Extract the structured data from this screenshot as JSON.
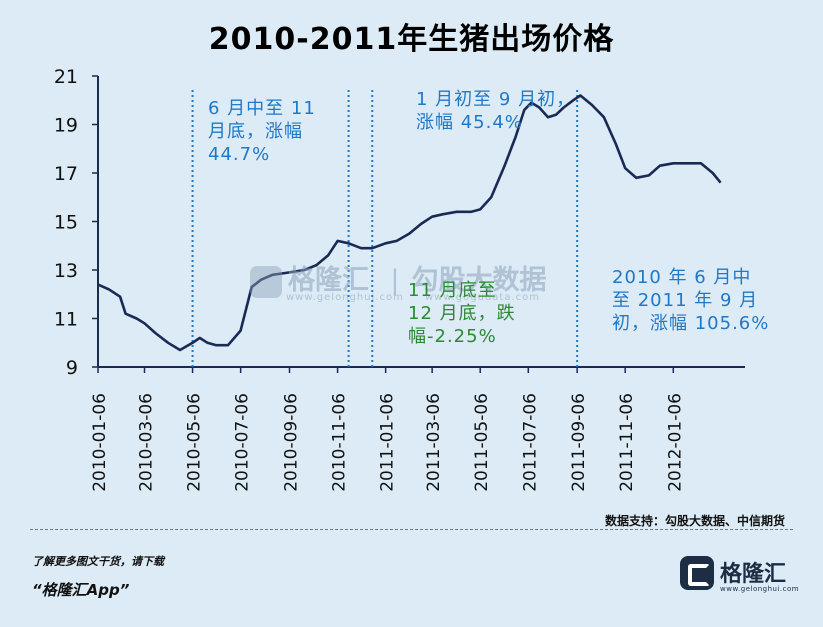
{
  "chart_data": {
    "type": "line",
    "title": "2010-2011年生猪出场价格",
    "xlabel": "",
    "ylabel": "",
    "ylim": [
      9,
      21
    ],
    "yticks": [
      9,
      11,
      13,
      15,
      17,
      19,
      21
    ],
    "xlim": [
      "2010-01-06",
      "2012-04-06"
    ],
    "xticks": [
      "2010-01-06",
      "2010-03-06",
      "2010-05-06",
      "2010-07-06",
      "2010-09-06",
      "2010-11-06",
      "2011-01-06",
      "2011-03-06",
      "2011-05-06",
      "2011-07-06",
      "2011-09-06",
      "2011-11-06",
      "2012-01-06"
    ],
    "grid": false,
    "series": [
      {
        "color": "#1a2a55",
        "points": [
          [
            "2010-01-06",
            12.4
          ],
          [
            "2010-01-20",
            12.2
          ],
          [
            "2010-02-03",
            11.9
          ],
          [
            "2010-02-10",
            11.2
          ],
          [
            "2010-02-24",
            11.0
          ],
          [
            "2010-03-06",
            10.8
          ],
          [
            "2010-03-20",
            10.4
          ],
          [
            "2010-04-05",
            10.0
          ],
          [
            "2010-04-20",
            9.7
          ],
          [
            "2010-05-06",
            10.0
          ],
          [
            "2010-05-15",
            10.2
          ],
          [
            "2010-05-25",
            10.0
          ],
          [
            "2010-06-05",
            9.9
          ],
          [
            "2010-06-20",
            9.9
          ],
          [
            "2010-07-06",
            10.5
          ],
          [
            "2010-07-20",
            12.3
          ],
          [
            "2010-08-01",
            12.6
          ],
          [
            "2010-08-15",
            12.8
          ],
          [
            "2010-09-06",
            12.9
          ],
          [
            "2010-09-25",
            13.0
          ],
          [
            "2010-10-10",
            13.2
          ],
          [
            "2010-10-25",
            13.6
          ],
          [
            "2010-11-06",
            14.2
          ],
          [
            "2010-11-20",
            14.1
          ],
          [
            "2010-12-06",
            13.9
          ],
          [
            "2010-12-20",
            13.9
          ],
          [
            "2011-01-06",
            14.1
          ],
          [
            "2011-01-20",
            14.2
          ],
          [
            "2011-02-05",
            14.5
          ],
          [
            "2011-02-20",
            14.9
          ],
          [
            "2011-03-06",
            15.2
          ],
          [
            "2011-03-20",
            15.3
          ],
          [
            "2011-04-06",
            15.4
          ],
          [
            "2011-04-25",
            15.4
          ],
          [
            "2011-05-06",
            15.5
          ],
          [
            "2011-05-20",
            16.0
          ],
          [
            "2011-06-06",
            17.3
          ],
          [
            "2011-06-20",
            18.5
          ],
          [
            "2011-07-01",
            19.6
          ],
          [
            "2011-07-10",
            19.9
          ],
          [
            "2011-07-20",
            19.7
          ],
          [
            "2011-07-31",
            19.3
          ],
          [
            "2011-08-10",
            19.4
          ],
          [
            "2011-08-20",
            19.7
          ],
          [
            "2011-09-01",
            20.0
          ],
          [
            "2011-09-10",
            20.2
          ],
          [
            "2011-09-25",
            19.8
          ],
          [
            "2011-10-10",
            19.3
          ],
          [
            "2011-10-25",
            18.2
          ],
          [
            "2011-11-06",
            17.2
          ],
          [
            "2011-11-20",
            16.8
          ],
          [
            "2011-12-06",
            16.9
          ],
          [
            "2011-12-20",
            17.3
          ],
          [
            "2012-01-06",
            17.4
          ],
          [
            "2012-01-25",
            17.4
          ],
          [
            "2012-02-10",
            17.4
          ],
          [
            "2012-02-25",
            17.0
          ],
          [
            "2012-03-06",
            16.6
          ]
        ]
      }
    ],
    "marker_lines": [
      "2010-05-06",
      "2010-11-20",
      "2010-12-20",
      "2011-09-06"
    ],
    "annotations": [
      {
        "id": "ann-1",
        "color": "#1f78c8",
        "lines": [
          "6 月中至 11",
          "月底，涨幅",
          "44.7%"
        ]
      },
      {
        "id": "ann-2",
        "color": "#1f78c8",
        "lines": [
          "1 月初至 9 月初，",
          "涨幅 45.4%"
        ]
      },
      {
        "id": "ann-3",
        "color": "#2a8a33",
        "lines": [
          "11 月底至",
          "12 月底，跌",
          "幅-2.25%"
        ]
      },
      {
        "id": "ann-4",
        "color": "#1f78c8",
        "lines": [
          "2010 年 6 月中",
          "至 2011 年 9 月",
          "初，涨幅 105.6%"
        ]
      }
    ]
  },
  "watermark": {
    "brand": "格隆汇",
    "partner": "勾股大数据",
    "brand_url": "www.gelonghui.com",
    "partner_url": "www.gogudata.com"
  },
  "source": "数据支持：勾股大数据、中信期货",
  "footer": {
    "note": "了解更多图文干货，请下载",
    "app": "“格隆汇App”"
  },
  "brand": {
    "name": "格隆汇",
    "url": "www.gelonghui.com",
    "icon": "gelonghui-logo-icon"
  }
}
